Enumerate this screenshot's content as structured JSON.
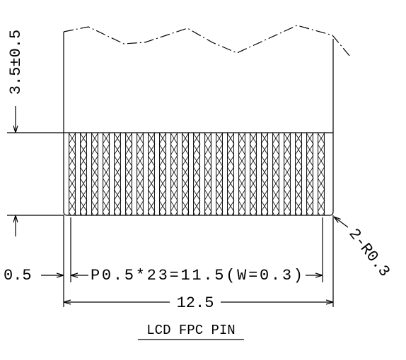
{
  "dimensions": {
    "overhang": "3.5±0.5",
    "edge_offset": "0.5",
    "pitch": "P0.5*23=11.5(W=0.3)",
    "total_width": "12.5",
    "corner_radius": "2-R0.3"
  },
  "caption": "LCD FPC PIN"
}
